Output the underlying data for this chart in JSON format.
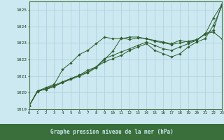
{
  "x": [
    0,
    1,
    2,
    3,
    4,
    5,
    6,
    7,
    8,
    9,
    10,
    11,
    12,
    13,
    14,
    15,
    16,
    17,
    18,
    19,
    20,
    21,
    22,
    23
  ],
  "series1": [
    1019.2,
    1020.1,
    1020.2,
    1020.4,
    1020.6,
    1020.8,
    1021.0,
    1021.2,
    1021.5,
    1022.0,
    1022.5,
    1023.3,
    1023.2,
    1023.3,
    1023.25,
    1023.1,
    1023.0,
    1022.9,
    1023.0,
    1023.1,
    1023.2,
    1023.5,
    1024.5,
    1025.3
  ],
  "series2": [
    1019.2,
    1020.1,
    1020.2,
    1020.35,
    1020.65,
    1020.85,
    1021.05,
    1021.35,
    1021.55,
    1022.05,
    1022.25,
    1022.45,
    1022.65,
    1022.85,
    1023.05,
    1022.85,
    1022.65,
    1022.55,
    1022.75,
    1022.95,
    1023.15,
    1023.55,
    1023.75,
    1025.35
  ],
  "series3": [
    1019.2,
    1020.05,
    1020.25,
    1020.45,
    1020.65,
    1020.85,
    1021.05,
    1021.25,
    1021.55,
    1021.85,
    1022.05,
    1022.25,
    1022.55,
    1022.75,
    1022.95,
    1022.55,
    1022.35,
    1022.15,
    1022.35,
    1022.75,
    1023.05,
    1023.25,
    1024.05,
    1025.2
  ],
  "series4": [
    1019.2,
    1020.1,
    1020.3,
    1020.5,
    1021.4,
    1021.8,
    1022.3,
    1022.55,
    1022.95,
    1023.35,
    1023.25,
    1023.25,
    1023.35,
    1023.35,
    1023.25,
    1023.15,
    1023.05,
    1022.95,
    1023.15,
    1023.05,
    1023.15,
    1023.55,
    1023.65,
    1023.25
  ],
  "ylim": [
    1019,
    1025.5
  ],
  "yticks": [
    1019,
    1020,
    1021,
    1022,
    1023,
    1024,
    1025
  ],
  "xlim": [
    0,
    23
  ],
  "bg_color": "#cce8f0",
  "grid_color": "#aacfdd",
  "line_color": "#2d5e2d",
  "tick_color": "#1a3a1a",
  "xlabel": "Graphe pression niveau de la mer (hPa)",
  "xlabel_bg": "#3a6e3a",
  "xlabel_fg": "#cce8f0"
}
